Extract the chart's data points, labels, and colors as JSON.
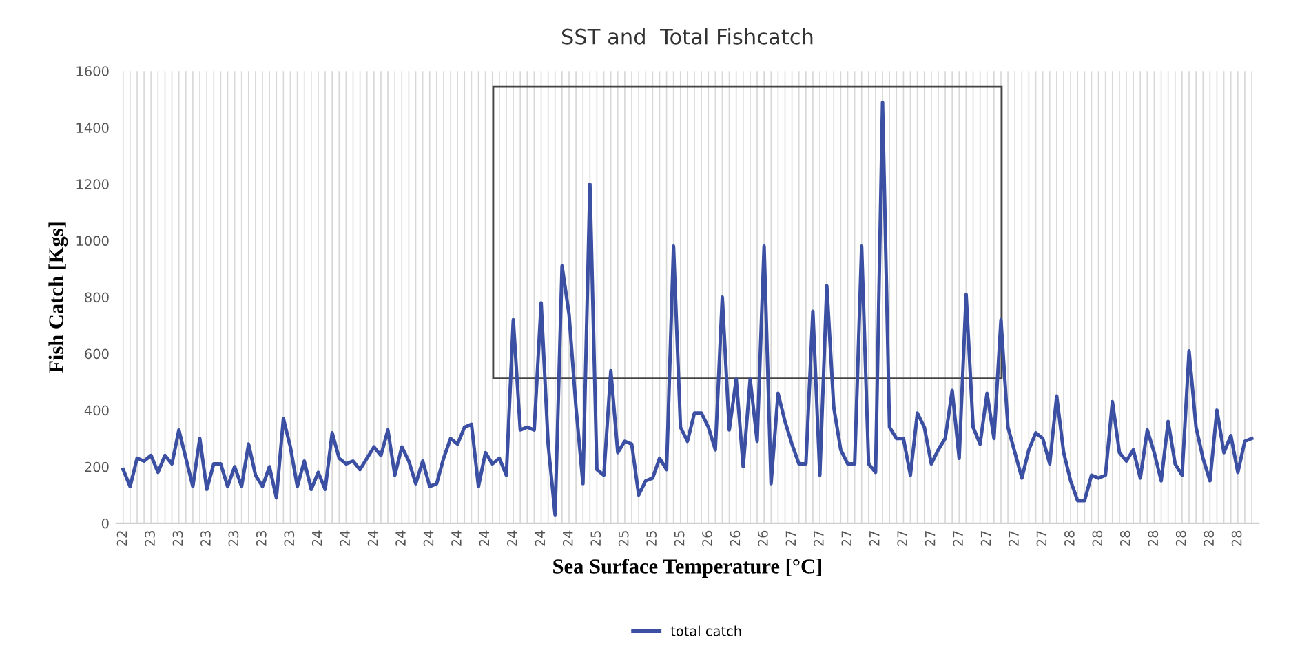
{
  "chart_data": {
    "type": "line",
    "title": "SST and  Total Fishcatch",
    "xlabel": "Sea Surface Temperature [°C]",
    "ylabel": "Fish Catch [Kgs]",
    "categories": [
      "22",
      null,
      null,
      null,
      "23",
      null,
      null,
      null,
      "23",
      null,
      null,
      null,
      "23",
      null,
      null,
      null,
      "23",
      null,
      null,
      null,
      "23",
      null,
      null,
      null,
      "23",
      null,
      null,
      null,
      "24",
      null,
      null,
      null,
      "24",
      null,
      null,
      null,
      "24",
      null,
      null,
      null,
      "24",
      null,
      null,
      null,
      "24",
      null,
      null,
      null,
      "24",
      null,
      null,
      null,
      "24",
      null,
      null,
      null,
      "24",
      null,
      null,
      null,
      "24",
      null,
      null,
      null,
      "24",
      null,
      null,
      null,
      "25",
      null,
      null,
      null,
      "25",
      null,
      null,
      null,
      "25",
      null,
      null,
      null,
      "25",
      null,
      null,
      null,
      "26",
      null,
      null,
      null,
      "26",
      null,
      null,
      null,
      "26",
      null,
      null,
      null,
      "27",
      null,
      null,
      null,
      "27",
      null,
      null,
      null,
      "27",
      null,
      null,
      null,
      "27",
      null,
      null,
      null,
      "27",
      null,
      null,
      null,
      "27",
      null,
      null,
      null,
      "27",
      null,
      null,
      null,
      "27",
      null,
      null,
      null,
      "27",
      null,
      null,
      null,
      "27",
      null,
      null,
      null,
      "28",
      null,
      null,
      null,
      "28",
      null,
      null,
      null,
      "28",
      null,
      null,
      null,
      "28",
      null,
      null,
      null,
      "28",
      null,
      null,
      null,
      "28",
      null,
      null,
      null,
      "28",
      null,
      null
    ],
    "series": [
      {
        "name": "total catch",
        "color": "#3b4fa3",
        "values": [
          190,
          130,
          230,
          220,
          240,
          180,
          240,
          210,
          330,
          230,
          130,
          300,
          120,
          210,
          210,
          130,
          200,
          130,
          280,
          170,
          130,
          200,
          90,
          370,
          270,
          130,
          220,
          120,
          180,
          120,
          320,
          230,
          210,
          220,
          190,
          230,
          270,
          240,
          330,
          170,
          270,
          220,
          140,
          220,
          130,
          140,
          230,
          300,
          280,
          340,
          350,
          130,
          250,
          210,
          230,
          170,
          720,
          330,
          340,
          330,
          780,
          280,
          30,
          910,
          740,
          410,
          140,
          1200,
          190,
          170,
          540,
          250,
          290,
          280,
          100,
          150,
          160,
          230,
          190,
          980,
          340,
          290,
          390,
          390,
          340,
          260,
          800,
          330,
          510,
          200,
          510,
          290,
          980,
          140,
          460,
          360,
          280,
          210,
          210,
          750,
          170,
          840,
          410,
          260,
          210,
          210,
          980,
          210,
          180,
          1490,
          340,
          300,
          300,
          170,
          390,
          340,
          210,
          260,
          300,
          470,
          230,
          810,
          340,
          280,
          460,
          300,
          720,
          340,
          250,
          160,
          260,
          320,
          300,
          210,
          450,
          250,
          150,
          80,
          80,
          170,
          160,
          170,
          430,
          250,
          220,
          260,
          160,
          330,
          250,
          150,
          360,
          210,
          170,
          610,
          340,
          230,
          150,
          400,
          250,
          310,
          180,
          290,
          300
        ]
      }
    ],
    "ylim": [
      0,
      1600
    ],
    "yticks": [
      0,
      200,
      400,
      600,
      800,
      1000,
      1200,
      1400,
      1600
    ],
    "grid": "x",
    "legend": "bottom",
    "marker": "none",
    "line_style": "solid"
  }
}
